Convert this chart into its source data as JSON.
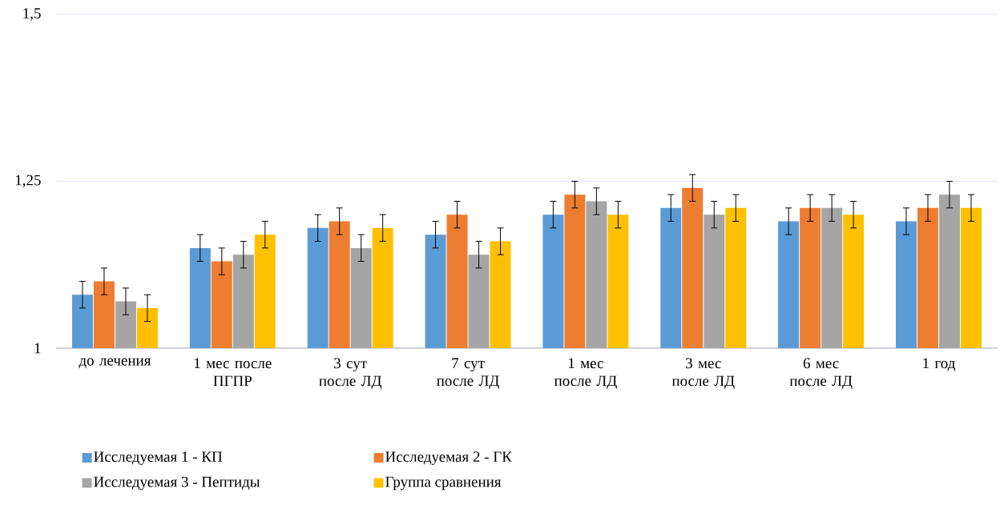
{
  "chart_data": {
    "type": "bar",
    "categories": [
      "до лечения",
      "1 мес после ПГПР",
      "3 сут после ЛД",
      "7 сут после ЛД",
      "1 мес после ЛД",
      "3 мес после ЛД",
      "6 мес после ЛД",
      "1 год"
    ],
    "series": [
      {
        "name": "Исследуемая 1 - КП",
        "color": "#5b9bd5",
        "values": [
          1.08,
          1.15,
          1.18,
          1.17,
          1.2,
          1.21,
          1.19,
          1.19
        ],
        "errors": [
          0.02,
          0.02,
          0.02,
          0.02,
          0.02,
          0.02,
          0.02,
          0.02
        ]
      },
      {
        "name": "Исследуемая 2 - ГК",
        "color": "#ed7d31",
        "values": [
          1.1,
          1.13,
          1.19,
          1.2,
          1.23,
          1.24,
          1.21,
          1.21
        ],
        "errors": [
          0.02,
          0.02,
          0.02,
          0.02,
          0.02,
          0.02,
          0.02,
          0.02
        ]
      },
      {
        "name": "Исследуемая 3 - Пептиды",
        "color": "#a5a5a5",
        "values": [
          1.07,
          1.14,
          1.15,
          1.14,
          1.22,
          1.2,
          1.21,
          1.23
        ],
        "errors": [
          0.02,
          0.02,
          0.02,
          0.02,
          0.02,
          0.02,
          0.02,
          0.02
        ]
      },
      {
        "name": "Группа сравнения",
        "color": "#ffc000",
        "values": [
          1.06,
          1.17,
          1.18,
          1.16,
          1.2,
          1.21,
          1.2,
          1.21
        ],
        "errors": [
          0.02,
          0.02,
          0.02,
          0.02,
          0.02,
          0.02,
          0.02,
          0.02
        ]
      }
    ],
    "ylim": [
      1,
      1.5
    ],
    "yticks": [
      {
        "value": 1,
        "label": "1"
      },
      {
        "value": 1.25,
        "label": "1,25"
      },
      {
        "value": 1.5,
        "label": "1,5"
      }
    ],
    "grid": "y",
    "legend": "bottom"
  }
}
